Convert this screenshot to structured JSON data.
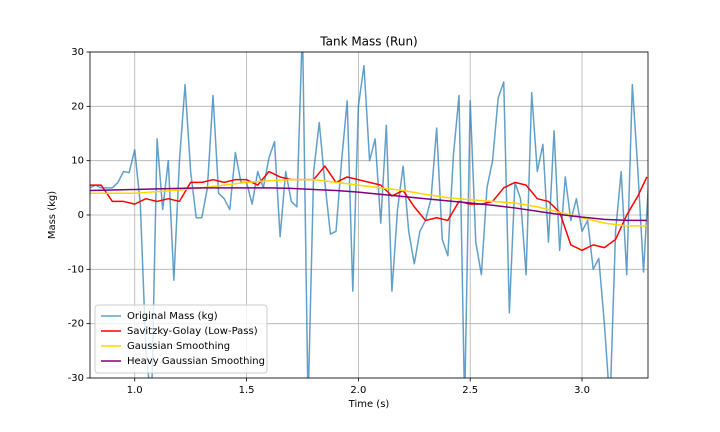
{
  "chart_data": {
    "type": "line",
    "title": "Tank Mass (Run)",
    "xlabel": "Time (s)",
    "ylabel": "Mass (kg)",
    "xlim": [
      0.8,
      3.295
    ],
    "ylim": [
      -30,
      30
    ],
    "xticks": [
      {
        "value": 1,
        "label": "1.0"
      },
      1.5,
      {
        "value": 2,
        "label": "2.0"
      },
      2.5,
      {
        "value": 3,
        "label": "3.0"
      }
    ],
    "yticks": [
      -30,
      -20,
      -10,
      0,
      10,
      20,
      30
    ],
    "grid": true,
    "legend": "lower left",
    "series": [
      {
        "name": "Original Mass (kg)",
        "color": "#1f77b4",
        "x": [
          0.8,
          0.825,
          0.85,
          0.875,
          0.9,
          0.925,
          0.95,
          0.975,
          1.0,
          1.025,
          1.05,
          1.075,
          1.1,
          1.125,
          1.15,
          1.175,
          1.2,
          1.225,
          1.25,
          1.275,
          1.3,
          1.325,
          1.35,
          1.375,
          1.4,
          1.425,
          1.45,
          1.475,
          1.5,
          1.525,
          1.55,
          1.575,
          1.6,
          1.625,
          1.65,
          1.675,
          1.7,
          1.725,
          1.75,
          1.775,
          1.8,
          1.825,
          1.85,
          1.875,
          1.9,
          1.925,
          1.95,
          1.975,
          2.0,
          2.025,
          2.05,
          2.075,
          2.1,
          2.125,
          2.15,
          2.175,
          2.2,
          2.225,
          2.25,
          2.275,
          2.3,
          2.325,
          2.35,
          2.375,
          2.4,
          2.425,
          2.45,
          2.475,
          2.5,
          2.525,
          2.55,
          2.575,
          2.6,
          2.625,
          2.65,
          2.675,
          2.7,
          2.725,
          2.75,
          2.775,
          2.8,
          2.825,
          2.85,
          2.875,
          2.9,
          2.925,
          2.95,
          2.975,
          3.0,
          3.025,
          3.05,
          3.075,
          3.1,
          3.125,
          3.15,
          3.175,
          3.2,
          3.225,
          3.25,
          3.275,
          3.3
        ],
        "values": [
          5,
          5.5,
          5,
          5,
          5,
          6,
          8,
          7.8,
          12,
          2,
          -25,
          -35,
          14,
          1,
          10,
          -12,
          10,
          24,
          8,
          -0.5,
          -0.5,
          5,
          22,
          4,
          3,
          1,
          11.5,
          6,
          6,
          2,
          8,
          5,
          10.5,
          13.5,
          -4,
          8,
          2.5,
          1.5,
          35,
          -35,
          8,
          17,
          6,
          -3.5,
          -3,
          10,
          21,
          -14,
          20,
          27.5,
          10,
          14,
          -1.5,
          16.5,
          -14,
          1,
          9,
          -3,
          -9,
          -3,
          -1,
          3,
          16,
          -4.5,
          -7.5,
          11,
          22,
          -35,
          21,
          -5,
          -11,
          5,
          10,
          21.5,
          24.5,
          -18,
          6,
          3,
          -11,
          22.5,
          8,
          13,
          -5,
          15.5,
          -6.5,
          7,
          -1,
          3,
          -3,
          -1,
          -10,
          -8,
          -20,
          -35,
          -3,
          8,
          -11,
          24,
          8,
          -10.5,
          8
        ]
      },
      {
        "name": "Savitzky-Golay (Low-Pass)",
        "color": "#ff0000",
        "x": [
          0.8,
          0.85,
          0.9,
          0.95,
          1.0,
          1.05,
          1.1,
          1.15,
          1.2,
          1.25,
          1.3,
          1.35,
          1.4,
          1.45,
          1.5,
          1.55,
          1.6,
          1.65,
          1.7,
          1.75,
          1.8,
          1.85,
          1.9,
          1.95,
          2.0,
          2.05,
          2.1,
          2.15,
          2.2,
          2.25,
          2.3,
          2.35,
          2.4,
          2.45,
          2.5,
          2.55,
          2.6,
          2.65,
          2.7,
          2.75,
          2.8,
          2.85,
          2.9,
          2.95,
          3.0,
          3.05,
          3.1,
          3.15,
          3.2,
          3.25,
          3.29
        ],
        "values": [
          5.5,
          5.5,
          2.5,
          2.5,
          2,
          3,
          2.5,
          3,
          2.5,
          6,
          6,
          6.5,
          6,
          6.5,
          6.5,
          5.5,
          8,
          7,
          6.5,
          6.5,
          6.5,
          9,
          6,
          7,
          6.5,
          6,
          5.5,
          3.5,
          4.5,
          1.5,
          -1,
          -0.5,
          -1,
          2.5,
          2,
          2,
          2.5,
          5,
          6,
          5.5,
          3,
          2.5,
          0.5,
          -5.5,
          -6.5,
          -5.5,
          -6,
          -4.5,
          0,
          3.5,
          7
        ]
      },
      {
        "name": "Gaussian Smoothing",
        "color": "#ffd700",
        "x": [
          0.8,
          0.9,
          1.0,
          1.1,
          1.2,
          1.3,
          1.4,
          1.5,
          1.6,
          1.7,
          1.8,
          1.9,
          2.0,
          2.1,
          2.2,
          2.3,
          2.4,
          2.5,
          2.6,
          2.7,
          2.8,
          2.9,
          3.0,
          3.1,
          3.2,
          3.29
        ],
        "values": [
          4,
          4,
          4,
          4.3,
          4.6,
          5,
          5.5,
          6,
          6.3,
          6.5,
          6.5,
          6,
          5.5,
          5,
          4.5,
          3.8,
          3.2,
          2.8,
          2.5,
          2.2,
          1.5,
          0.5,
          -0.5,
          -1.5,
          -2,
          -2
        ]
      },
      {
        "name": "Heavy Gaussian Smoothing",
        "color": "#800080",
        "x": [
          0.8,
          0.9,
          1.0,
          1.1,
          1.2,
          1.3,
          1.4,
          1.5,
          1.6,
          1.7,
          1.8,
          1.9,
          2.0,
          2.1,
          2.2,
          2.3,
          2.4,
          2.5,
          2.6,
          2.7,
          2.8,
          2.9,
          3.0,
          3.1,
          3.2,
          3.29
        ],
        "values": [
          4.5,
          4.6,
          4.7,
          4.8,
          4.9,
          5,
          5,
          5,
          5,
          4.9,
          4.7,
          4.5,
          4.2,
          3.8,
          3.4,
          3,
          2.6,
          2.2,
          1.8,
          1.3,
          0.7,
          0.1,
          -0.4,
          -0.8,
          -1,
          -1
        ]
      }
    ]
  }
}
